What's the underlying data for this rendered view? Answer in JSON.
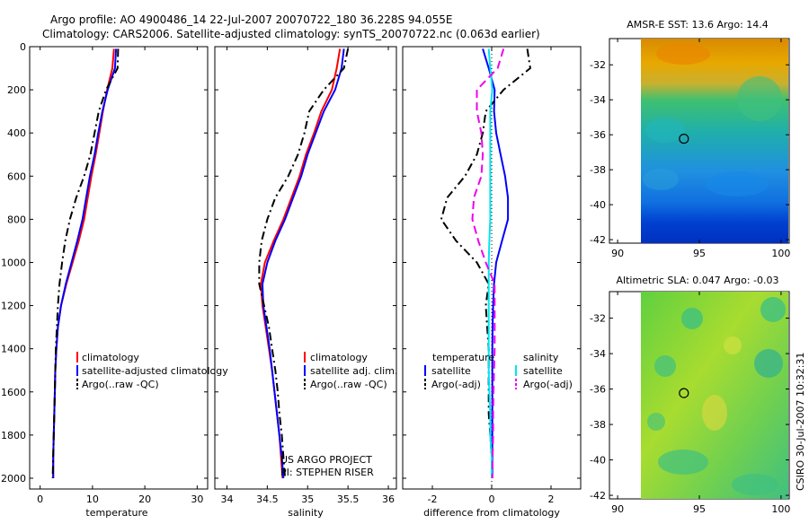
{
  "header": {
    "line1": "Argo profile: AO 4900486_14 22-Jul-2007 20070722_180 36.228S 94.055E",
    "line2": "Climatology: CARS2006. Satellite-adjusted climatology: synTS_20070722.nc (0.063d earlier)"
  },
  "colors": {
    "climatology": "#ff0000",
    "satellite": "#0000ff",
    "argo": "#000000",
    "salinity_diff": "#00e5ee",
    "salinity_argo_diff": "#ee00ee"
  },
  "chart_data": [
    {
      "type": "line",
      "xlabel": "temperature",
      "xticks": [
        "0",
        "10",
        "20",
        "30"
      ],
      "xlim": [
        -2,
        32
      ],
      "yticks": [
        "0",
        "200",
        "400",
        "600",
        "800",
        "1000",
        "1200",
        "1400",
        "1600",
        "1800",
        "2000"
      ],
      "ylim": [
        2050,
        0
      ],
      "depth": [
        10,
        100,
        200,
        300,
        400,
        500,
        600,
        700,
        800,
        900,
        1000,
        1100,
        1200,
        1300,
        1400,
        1500,
        1600,
        1700,
        1800,
        1900,
        2000
      ],
      "series": [
        {
          "name": "climatology",
          "color": "#ff0000",
          "dash": "",
          "values": [
            14.1,
            13.8,
            12.8,
            12.0,
            11.3,
            10.6,
            9.8,
            9.1,
            8.4,
            7.4,
            6.2,
            5.0,
            4.0,
            3.4,
            3.1,
            2.9,
            2.8,
            2.7,
            2.6,
            2.5,
            2.5
          ]
        },
        {
          "name": "satellite-adjusted climatology",
          "color": "#0000ff",
          "dash": "",
          "values": [
            14.5,
            14.3,
            12.9,
            11.9,
            11.1,
            10.4,
            9.5,
            8.8,
            8.1,
            7.1,
            6.0,
            4.9,
            4.0,
            3.4,
            3.1,
            2.9,
            2.8,
            2.7,
            2.6,
            2.5,
            2.5
          ]
        },
        {
          "name": "Argo(..raw -QC)",
          "color": "#000000",
          "dash": "9,4,2,4",
          "values": [
            14.9,
            14.8,
            12.6,
            11.2,
            10.4,
            9.6,
            8.4,
            6.9,
            5.7,
            4.8,
            4.2,
            3.7,
            3.4,
            3.2,
            3.0,
            2.9,
            2.8,
            2.7,
            2.6,
            2.5,
            2.4
          ]
        }
      ],
      "legend": [
        "climatology",
        "satellite-adjusted climatology",
        "Argo(..raw -QC)"
      ]
    },
    {
      "type": "line",
      "xlabel": "salinity",
      "xticks": [
        "34",
        "34.5",
        "35",
        "35.5",
        "36"
      ],
      "xlim": [
        33.85,
        36.1
      ],
      "yticks": [],
      "ylim": [
        2050,
        0
      ],
      "depth": [
        10,
        100,
        200,
        300,
        400,
        500,
        600,
        700,
        800,
        900,
        1000,
        1100,
        1200,
        1300,
        1400,
        1500,
        1600,
        1700,
        1800,
        1900,
        2000
      ],
      "series": [
        {
          "name": "climatology",
          "color": "#ff0000",
          "dash": "",
          "values": [
            35.4,
            35.36,
            35.3,
            35.17,
            35.08,
            34.98,
            34.9,
            34.8,
            34.7,
            34.58,
            34.47,
            34.42,
            34.44,
            34.48,
            34.52,
            34.56,
            34.59,
            34.62,
            34.65,
            34.67,
            34.69
          ]
        },
        {
          "name": "satellite adj. clim.",
          "color": "#0000ff",
          "dash": "",
          "values": [
            35.45,
            35.42,
            35.34,
            35.2,
            35.1,
            35.0,
            34.92,
            34.82,
            34.72,
            34.6,
            34.5,
            34.44,
            34.45,
            34.49,
            34.53,
            34.56,
            34.59,
            34.62,
            34.65,
            34.68,
            34.7
          ]
        },
        {
          "name": "Argo(..raw -QC)",
          "color": "#000000",
          "dash": "9,4,2,4",
          "values": [
            35.5,
            35.45,
            35.2,
            35.02,
            34.96,
            34.88,
            34.76,
            34.6,
            34.5,
            34.43,
            34.4,
            34.4,
            34.46,
            34.52,
            34.56,
            34.6,
            34.63,
            34.65,
            34.68,
            34.7,
            34.72
          ]
        }
      ],
      "legend": [
        "climatology",
        "satellite adj. clim.",
        "Argo(..raw -QC)"
      ],
      "annotation": [
        "US ARGO PROJECT",
        "PI: STEPHEN RISER"
      ]
    },
    {
      "type": "line",
      "xlabel": "difference from climatology",
      "xticks": [
        "-2",
        "0",
        "2"
      ],
      "xlim": [
        -3,
        3
      ],
      "yticks": [],
      "ylim": [
        2050,
        0
      ],
      "depth": [
        10,
        100,
        200,
        300,
        400,
        500,
        600,
        700,
        800,
        900,
        1000,
        1100,
        1200,
        1300,
        1400,
        1500,
        1600,
        1700,
        1800,
        1900,
        2000
      ],
      "series": [
        {
          "name": "temperature satellite",
          "color": "#0000ff",
          "dash": "",
          "values": [
            -0.3,
            -0.1,
            0.1,
            0.08,
            0.15,
            0.3,
            0.45,
            0.55,
            0.55,
            0.35,
            0.15,
            0.08,
            0.05,
            0.03,
            0.02,
            0.02,
            0.02,
            0.02,
            0.02,
            0.02,
            0.02
          ]
        },
        {
          "name": "temperature Argo(-adj)",
          "color": "#000000",
          "dash": "9,4,2,4",
          "values": [
            1.2,
            1.3,
            0.4,
            -0.2,
            -0.3,
            -0.5,
            -0.9,
            -1.5,
            -1.7,
            -1.2,
            -0.5,
            -0.1,
            -0.2,
            -0.15,
            -0.1,
            -0.1,
            -0.1,
            -0.1,
            -0.05,
            0.0,
            0.0
          ]
        },
        {
          "name": "salinity satellite",
          "color": "#00e5ee",
          "dash": "",
          "values": [
            -0.1,
            -0.05,
            0.02,
            -0.05,
            -0.05,
            -0.05,
            -0.05,
            -0.05,
            -0.05,
            -0.08,
            -0.1,
            -0.1,
            -0.1,
            -0.1,
            -0.1,
            -0.1,
            -0.08,
            -0.05,
            -0.05,
            0.0,
            0.0
          ]
        },
        {
          "name": "salinity Argo(-adj)",
          "color": "#ee00ee",
          "dash": "9,5",
          "values": [
            0.4,
            0.2,
            -0.5,
            -0.5,
            -0.35,
            -0.3,
            -0.35,
            -0.6,
            -0.65,
            -0.45,
            -0.2,
            0.1,
            0.1,
            0.1,
            0.1,
            0.08,
            0.06,
            0.05,
            0.05,
            0.03,
            0.02
          ]
        }
      ],
      "legend_heads": [
        "temperature",
        "salinity"
      ],
      "legend": [
        "satellite",
        "Argo(-adj)",
        "satellite",
        "Argo(-adj)"
      ]
    }
  ],
  "maps": [
    {
      "title": "AMSR-E SST: 13.6  Argo: 14.4",
      "xticks": [
        "90",
        "95",
        "100"
      ],
      "yticks": [
        "-32",
        "-34",
        "-36",
        "-38",
        "-40",
        "-42"
      ],
      "xlim": [
        89.5,
        100.5
      ],
      "ylim": [
        -42.2,
        -30.5
      ]
    },
    {
      "title": "Altimetric SLA: 0.047  Argo: -0.03",
      "xticks": [
        "90",
        "95",
        "100"
      ],
      "yticks": [
        "-32",
        "-34",
        "-36",
        "-38",
        "-40",
        "-42"
      ],
      "xlim": [
        89.5,
        100.5
      ],
      "ylim": [
        -42.2,
        -30.5
      ]
    }
  ],
  "float_position": {
    "lat": -36.228,
    "lon": 94.055
  },
  "stamp": "CSIRO 30-Jul-2007 10:32:31"
}
